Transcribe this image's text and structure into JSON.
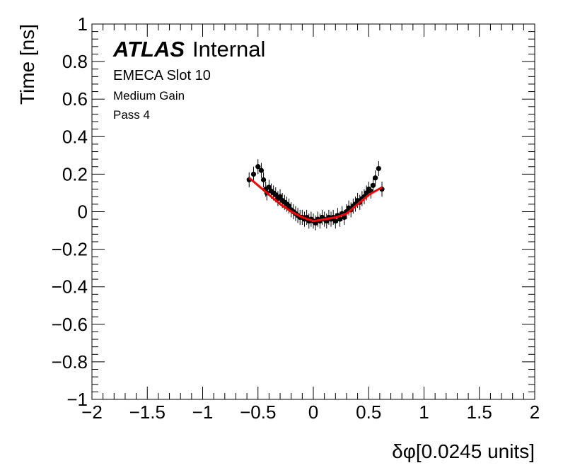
{
  "chart_data": {
    "type": "scatter",
    "title": "",
    "xlabel": "δφ[0.0245 units]",
    "ylabel": "Time [ns]",
    "xlim": [
      -2,
      2
    ],
    "ylim": [
      -1,
      1
    ],
    "x_ticks": [
      -2,
      -1.5,
      -1,
      -0.5,
      0,
      0.5,
      1,
      1.5,
      2
    ],
    "x_tick_labels": [
      "−2",
      "−1.5",
      "−1",
      "−0.5",
      "0",
      "0.5",
      "1",
      "1.5",
      "2"
    ],
    "y_ticks": [
      -1,
      -0.8,
      -0.6,
      -0.4,
      -0.2,
      0,
      0.2,
      0.4,
      0.6,
      0.8,
      1
    ],
    "y_tick_labels": [
      "−1",
      "−0.8",
      "−0.6",
      "−0.4",
      "−0.2",
      "0",
      "0.2",
      "0.4",
      "0.6",
      "0.8",
      "1"
    ],
    "annotations": {
      "atlas": "ATLAS",
      "atlas_suffix": "Internal",
      "line1": "EMECA Slot 10",
      "line2": "Medium Gain",
      "line3": "Pass 4"
    },
    "series": [
      {
        "kind": "points_with_errors",
        "color": "#000000",
        "x": [
          -0.58,
          -0.54,
          -0.5,
          -0.47,
          -0.45,
          -0.43,
          -0.42,
          -0.4,
          -0.38,
          -0.36,
          -0.34,
          -0.32,
          -0.3,
          -0.28,
          -0.26,
          -0.24,
          -0.22,
          -0.2,
          -0.18,
          -0.16,
          -0.14,
          -0.12,
          -0.1,
          -0.08,
          -0.06,
          -0.04,
          -0.02,
          0.0,
          0.02,
          0.04,
          0.06,
          0.08,
          0.1,
          0.12,
          0.14,
          0.16,
          0.18,
          0.2,
          0.22,
          0.24,
          0.26,
          0.28,
          0.3,
          0.32,
          0.34,
          0.36,
          0.38,
          0.4,
          0.42,
          0.44,
          0.46,
          0.48,
          0.5,
          0.52,
          0.54,
          0.56,
          0.59,
          0.62
        ],
        "y": [
          0.17,
          0.2,
          0.24,
          0.22,
          0.17,
          0.12,
          0.1,
          0.13,
          0.11,
          0.1,
          0.09,
          0.07,
          0.08,
          0.06,
          0.05,
          0.04,
          0.03,
          0.01,
          0.0,
          -0.01,
          -0.02,
          -0.03,
          -0.03,
          -0.04,
          -0.03,
          -0.05,
          -0.04,
          -0.05,
          -0.06,
          -0.04,
          -0.05,
          -0.03,
          -0.04,
          -0.05,
          -0.03,
          -0.04,
          -0.03,
          -0.05,
          -0.02,
          -0.04,
          -0.01,
          -0.03,
          0.0,
          0.02,
          0.01,
          0.03,
          0.04,
          0.06,
          0.05,
          0.07,
          0.08,
          0.1,
          0.12,
          0.11,
          0.14,
          0.18,
          0.23,
          0.12
        ],
        "yerr": [
          0.04,
          0.04,
          0.04,
          0.04,
          0.04,
          0.04,
          0.04,
          0.04,
          0.04,
          0.04,
          0.04,
          0.04,
          0.04,
          0.04,
          0.04,
          0.04,
          0.04,
          0.04,
          0.04,
          0.04,
          0.04,
          0.04,
          0.04,
          0.04,
          0.04,
          0.04,
          0.04,
          0.04,
          0.04,
          0.04,
          0.04,
          0.04,
          0.04,
          0.04,
          0.04,
          0.04,
          0.04,
          0.04,
          0.04,
          0.04,
          0.04,
          0.04,
          0.04,
          0.04,
          0.04,
          0.04,
          0.04,
          0.04,
          0.04,
          0.04,
          0.04,
          0.04,
          0.04,
          0.04,
          0.04,
          0.04,
          0.04,
          0.04
        ]
      },
      {
        "kind": "fit_line",
        "color": "#ff0000",
        "x": [
          -0.58,
          -0.5,
          -0.4,
          -0.3,
          -0.2,
          -0.1,
          0.0,
          0.1,
          0.2,
          0.3,
          0.4,
          0.5,
          0.62
        ],
        "y": [
          0.18,
          0.14,
          0.09,
          0.04,
          0.0,
          -0.03,
          -0.05,
          -0.04,
          -0.03,
          -0.01,
          0.04,
          0.09,
          0.13
        ]
      }
    ]
  }
}
